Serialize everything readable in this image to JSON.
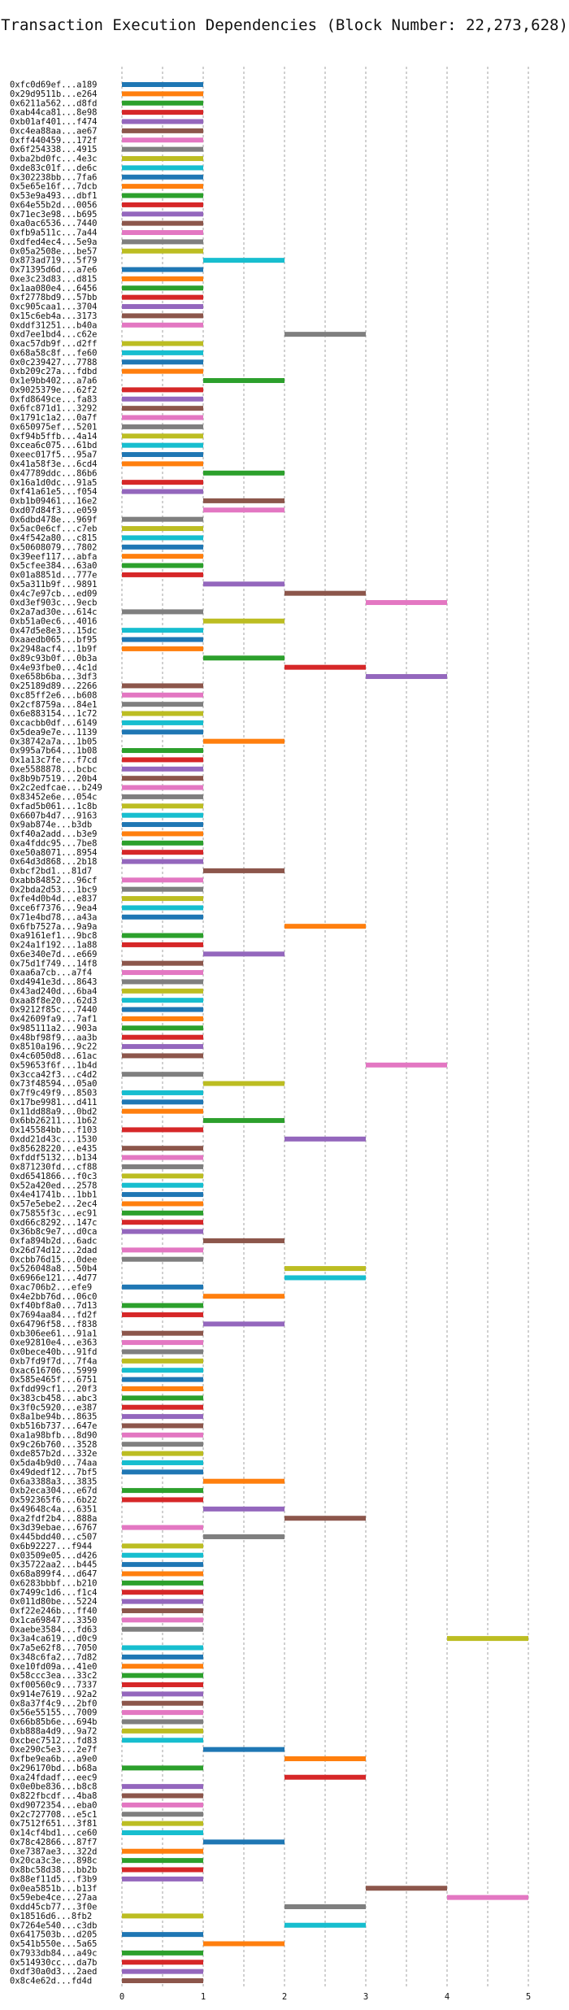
{
  "chart_data": {
    "type": "gantt-bar",
    "title": "Transaction Execution Dependencies (Block Number: 22,273,628)",
    "xlabel": "",
    "ylabel": "",
    "xlim": [
      0,
      5.3
    ],
    "xticks": [
      0,
      1,
      2,
      3,
      4,
      5
    ],
    "grid": true,
    "colors": [
      "#1f77b4",
      "#ff7f0e",
      "#2ca02c",
      "#d62728",
      "#9467bd",
      "#8c564b",
      "#e377c2",
      "#7f7f7f",
      "#bcbd22",
      "#17becf"
    ],
    "transactions": [
      {
        "label": "0xfc0d69ef...a189",
        "start": 0,
        "end": 1
      },
      {
        "label": "0x29d9511b...e264",
        "start": 0,
        "end": 1
      },
      {
        "label": "0x6211a562...d8fd",
        "start": 0,
        "end": 1
      },
      {
        "label": "0xab44ca81...8e98",
        "start": 0,
        "end": 1
      },
      {
        "label": "0xb01af401...f474",
        "start": 0,
        "end": 1
      },
      {
        "label": "0xc4ea88aa...ae67",
        "start": 0,
        "end": 1
      },
      {
        "label": "0xff440459...172f",
        "start": 0,
        "end": 1
      },
      {
        "label": "0x6f254338...4915",
        "start": 0,
        "end": 1
      },
      {
        "label": "0xba2bd0fc...4e3c",
        "start": 0,
        "end": 1
      },
      {
        "label": "0xde83c01f...de6c",
        "start": 0,
        "end": 1
      },
      {
        "label": "0x302238bb...7fa6",
        "start": 0,
        "end": 1
      },
      {
        "label": "0x5e65e16f...7dcb",
        "start": 0,
        "end": 1
      },
      {
        "label": "0x53e9a493...dbf1",
        "start": 0,
        "end": 1
      },
      {
        "label": "0x64e55b2d...0056",
        "start": 0,
        "end": 1
      },
      {
        "label": "0x71ec3e98...b695",
        "start": 0,
        "end": 1
      },
      {
        "label": "0xa0ac6536...7440",
        "start": 0,
        "end": 1
      },
      {
        "label": "0xfb9a511c...7a44",
        "start": 0,
        "end": 1
      },
      {
        "label": "0xdfed4ec4...5e9a",
        "start": 0,
        "end": 1
      },
      {
        "label": "0x05a2508e...be57",
        "start": 0,
        "end": 1
      },
      {
        "label": "0x873ad719...5f79",
        "start": 1,
        "end": 2
      },
      {
        "label": "0x71395d6d...a7e6",
        "start": 0,
        "end": 1
      },
      {
        "label": "0xe3c23d83...d815",
        "start": 0,
        "end": 1
      },
      {
        "label": "0x1aa080e4...6456",
        "start": 0,
        "end": 1
      },
      {
        "label": "0xf2778bd9...57bb",
        "start": 0,
        "end": 1
      },
      {
        "label": "0xc905caa1...3704",
        "start": 0,
        "end": 1
      },
      {
        "label": "0x15c6eb4a...3173",
        "start": 0,
        "end": 1
      },
      {
        "label": "0xddf31251...b40a",
        "start": 0,
        "end": 1
      },
      {
        "label": "0xd7ee1bd4...c62e",
        "start": 2,
        "end": 3
      },
      {
        "label": "0xac57db9f...d2ff",
        "start": 0,
        "end": 1
      },
      {
        "label": "0x68a58c8f...fe60",
        "start": 0,
        "end": 1
      },
      {
        "label": "0x0c239427...7788",
        "start": 0,
        "end": 1
      },
      {
        "label": "0xb209c27a...fdbd",
        "start": 0,
        "end": 1
      },
      {
        "label": "0x1e9bb402...a7a6",
        "start": 1,
        "end": 2
      },
      {
        "label": "0x9025379e...62f2",
        "start": 0,
        "end": 1
      },
      {
        "label": "0xfd8649ce...fa83",
        "start": 0,
        "end": 1
      },
      {
        "label": "0x6fc871d1...3292",
        "start": 0,
        "end": 1
      },
      {
        "label": "0x1791c1a2...0a7f",
        "start": 0,
        "end": 1
      },
      {
        "label": "0x650975ef...5201",
        "start": 0,
        "end": 1
      },
      {
        "label": "0xf94b5ffb...4a14",
        "start": 0,
        "end": 1
      },
      {
        "label": "0xcea6c075...61bd",
        "start": 0,
        "end": 1
      },
      {
        "label": "0xeec017f5...95a7",
        "start": 0,
        "end": 1
      },
      {
        "label": "0x41a58f3e...6cd4",
        "start": 0,
        "end": 1
      },
      {
        "label": "0x47789ddc...86b6",
        "start": 1,
        "end": 2
      },
      {
        "label": "0x16a1d0dc...91a5",
        "start": 0,
        "end": 1
      },
      {
        "label": "0xf41a61e5...f054",
        "start": 0,
        "end": 1
      },
      {
        "label": "0xb1b09461...16e2",
        "start": 1,
        "end": 2
      },
      {
        "label": "0xd07d84f3...e059",
        "start": 1,
        "end": 2
      },
      {
        "label": "0x6dbd478e...969f",
        "start": 0,
        "end": 1
      },
      {
        "label": "0x5ac0e6cf...c7eb",
        "start": 0,
        "end": 1
      },
      {
        "label": "0x4f542a80...c815",
        "start": 0,
        "end": 1
      },
      {
        "label": "0x50608079...7802",
        "start": 0,
        "end": 1
      },
      {
        "label": "0x39eef117...abfa",
        "start": 0,
        "end": 1
      },
      {
        "label": "0x5cfee384...63a0",
        "start": 0,
        "end": 1
      },
      {
        "label": "0x01a8851d...777e",
        "start": 0,
        "end": 1
      },
      {
        "label": "0x5a311b9f...9891",
        "start": 1,
        "end": 2
      },
      {
        "label": "0x4c7e97cb...ed09",
        "start": 2,
        "end": 3
      },
      {
        "label": "0xd3ef903c...9ecb",
        "start": 3,
        "end": 4
      },
      {
        "label": "0x2a7ad30e...614c",
        "start": 0,
        "end": 1
      },
      {
        "label": "0xb51a0ec6...4016",
        "start": 1,
        "end": 2
      },
      {
        "label": "0x47d5e8e3...15dc",
        "start": 0,
        "end": 1
      },
      {
        "label": "0xaaedb065...bf95",
        "start": 0,
        "end": 1
      },
      {
        "label": "0x2948acf4...1b9f",
        "start": 0,
        "end": 1
      },
      {
        "label": "0x89c93b0f...0b3a",
        "start": 1,
        "end": 2
      },
      {
        "label": "0x4e93fbe0...4c1d",
        "start": 2,
        "end": 3
      },
      {
        "label": "0xe658b6ba...3df3",
        "start": 3,
        "end": 4
      },
      {
        "label": "0x25189d89...2266",
        "start": 0,
        "end": 1
      },
      {
        "label": "0xc85ff2e6...b608",
        "start": 0,
        "end": 1
      },
      {
        "label": "0x2cf8759a...84e1",
        "start": 0,
        "end": 1
      },
      {
        "label": "0x6e883154...1c72",
        "start": 0,
        "end": 1
      },
      {
        "label": "0xcacbb0df...6149",
        "start": 0,
        "end": 1
      },
      {
        "label": "0x5dea9e7e...1139",
        "start": 0,
        "end": 1
      },
      {
        "label": "0x38742a7a...1b05",
        "start": 1,
        "end": 2
      },
      {
        "label": "0x995a7b64...1b08",
        "start": 0,
        "end": 1
      },
      {
        "label": "0x1a13c7fe...f7cd",
        "start": 0,
        "end": 1
      },
      {
        "label": "0xe5588878...bcbc",
        "start": 0,
        "end": 1
      },
      {
        "label": "0x8b9b7519...20b4",
        "start": 0,
        "end": 1
      },
      {
        "label": "0x2c2edfcae...b249",
        "start": 0,
        "end": 1
      },
      {
        "label": "0x83452e6e...054c",
        "start": 0,
        "end": 1
      },
      {
        "label": "0xfad5b061...1c8b",
        "start": 0,
        "end": 1
      },
      {
        "label": "0x6607b4d7...9163",
        "start": 0,
        "end": 1
      },
      {
        "label": "0x9ab874e...b3db",
        "start": 0,
        "end": 1
      },
      {
        "label": "0xf40a2add...b3e9",
        "start": 0,
        "end": 1
      },
      {
        "label": "0xa4fddc95...7be8",
        "start": 0,
        "end": 1
      },
      {
        "label": "0xe50a8071...8954",
        "start": 0,
        "end": 1
      },
      {
        "label": "0x64d3d868...2b18",
        "start": 0,
        "end": 1
      },
      {
        "label": "0xbcf2bd1...81d7",
        "start": 1,
        "end": 2
      },
      {
        "label": "0xabb84852...96cf",
        "start": 0,
        "end": 1
      },
      {
        "label": "0x2bda2d53...1bc9",
        "start": 0,
        "end": 1
      },
      {
        "label": "0xfe4d0b4d...e837",
        "start": 0,
        "end": 1
      },
      {
        "label": "0xce6f7376...9ea4",
        "start": 0,
        "end": 1
      },
      {
        "label": "0x71e4bd78...a43a",
        "start": 0,
        "end": 1
      },
      {
        "label": "0x6fb7527a...9a9a",
        "start": 2,
        "end": 3
      },
      {
        "label": "0xa9161ef1...9bc8",
        "start": 0,
        "end": 1
      },
      {
        "label": "0x24a1f192...1a88",
        "start": 0,
        "end": 1
      },
      {
        "label": "0x6e340e7d...e669",
        "start": 1,
        "end": 2
      },
      {
        "label": "0x75d1f749...14f8",
        "start": 0,
        "end": 1
      },
      {
        "label": "0xaa6a7cb...a7f4",
        "start": 0,
        "end": 1
      },
      {
        "label": "0xd4941e3d...8643",
        "start": 0,
        "end": 1
      },
      {
        "label": "0x43ad240d...6ba4",
        "start": 0,
        "end": 1
      },
      {
        "label": "0xaa8f8e20...62d3",
        "start": 0,
        "end": 1
      },
      {
        "label": "0x9212f85c...7440",
        "start": 0,
        "end": 1
      },
      {
        "label": "0x42609fa9...7af1",
        "start": 0,
        "end": 1
      },
      {
        "label": "0x985111a2...903a",
        "start": 0,
        "end": 1
      },
      {
        "label": "0x48bf98f9...aa3b",
        "start": 0,
        "end": 1
      },
      {
        "label": "0x8510a196...9c22",
        "start": 0,
        "end": 1
      },
      {
        "label": "0x4c6050d8...61ac",
        "start": 0,
        "end": 1
      },
      {
        "label": "0x59653f6f...1b4d",
        "start": 3,
        "end": 4
      },
      {
        "label": "0x3cca42f3...c4d2",
        "start": 0,
        "end": 1
      },
      {
        "label": "0x73f48594...05a0",
        "start": 1,
        "end": 2
      },
      {
        "label": "0x7f9c49f9...8503",
        "start": 0,
        "end": 1
      },
      {
        "label": "0x17be9981...d411",
        "start": 0,
        "end": 1
      },
      {
        "label": "0x11dd88a9...0bd2",
        "start": 0,
        "end": 1
      },
      {
        "label": "0x6bb26211...1b62",
        "start": 1,
        "end": 2
      },
      {
        "label": "0x145584bb...f103",
        "start": 0,
        "end": 1
      },
      {
        "label": "0xdd21d43c...1530",
        "start": 2,
        "end": 3
      },
      {
        "label": "0x85628220...e435",
        "start": 0,
        "end": 1
      },
      {
        "label": "0xfddf5132...b134",
        "start": 0,
        "end": 1
      },
      {
        "label": "0x871230fd...cf88",
        "start": 0,
        "end": 1
      },
      {
        "label": "0xd6541866...f0c3",
        "start": 0,
        "end": 1
      },
      {
        "label": "0x52a420ed...2578",
        "start": 0,
        "end": 1
      },
      {
        "label": "0x4e41741b...1bb1",
        "start": 0,
        "end": 1
      },
      {
        "label": "0x57e5ebe2...2ec4",
        "start": 0,
        "end": 1
      },
      {
        "label": "0x75855f3c...ec91",
        "start": 0,
        "end": 1
      },
      {
        "label": "0xd66c8292...147c",
        "start": 0,
        "end": 1
      },
      {
        "label": "0x36b8c9e7...d0ca",
        "start": 0,
        "end": 1
      },
      {
        "label": "0xfa894b2d...6adc",
        "start": 1,
        "end": 2
      },
      {
        "label": "0x26d74d12...2dad",
        "start": 0,
        "end": 1
      },
      {
        "label": "0xcbb76d15...0dee",
        "start": 0,
        "end": 1
      },
      {
        "label": "0x526048a8...50b4",
        "start": 2,
        "end": 3
      },
      {
        "label": "0x6966e121...4d77",
        "start": 2,
        "end": 3
      },
      {
        "label": "0xac706b2...efe9",
        "start": 0,
        "end": 1
      },
      {
        "label": "0x4e2bb76d...06c0",
        "start": 1,
        "end": 2
      },
      {
        "label": "0xf40bf8a0...7d13",
        "start": 0,
        "end": 1
      },
      {
        "label": "0x7694aa84...fd2f",
        "start": 0,
        "end": 1
      },
      {
        "label": "0x64796f58...f838",
        "start": 1,
        "end": 2
      },
      {
        "label": "0xb306ee61...91a1",
        "start": 0,
        "end": 1
      },
      {
        "label": "0xe92810e4...e363",
        "start": 0,
        "end": 1
      },
      {
        "label": "0x0bece40b...91fd",
        "start": 0,
        "end": 1
      },
      {
        "label": "0xb7fd9f7d...7f4a",
        "start": 0,
        "end": 1
      },
      {
        "label": "0xac616706...5999",
        "start": 0,
        "end": 1
      },
      {
        "label": "0x585e465f...6751",
        "start": 0,
        "end": 1
      },
      {
        "label": "0xfdd99cf1...20f3",
        "start": 0,
        "end": 1
      },
      {
        "label": "0x383cb458...abc3",
        "start": 0,
        "end": 1
      },
      {
        "label": "0x3f0c5920...e387",
        "start": 0,
        "end": 1
      },
      {
        "label": "0x8a1be94b...8635",
        "start": 0,
        "end": 1
      },
      {
        "label": "0xb516b737...647e",
        "start": 0,
        "end": 1
      },
      {
        "label": "0xa1a98bfb...8d90",
        "start": 0,
        "end": 1
      },
      {
        "label": "0x9c26b760...3528",
        "start": 0,
        "end": 1
      },
      {
        "label": "0xde857b2d...332e",
        "start": 0,
        "end": 1
      },
      {
        "label": "0x5da4b9d0...74aa",
        "start": 0,
        "end": 1
      },
      {
        "label": "0x49dedf12...7bf5",
        "start": 0,
        "end": 1
      },
      {
        "label": "0x6a3388a3...3835",
        "start": 1,
        "end": 2
      },
      {
        "label": "0xb2eca304...e67d",
        "start": 0,
        "end": 1
      },
      {
        "label": "0x592365f6...6b22",
        "start": 0,
        "end": 1
      },
      {
        "label": "0x49648c4a...6351",
        "start": 1,
        "end": 2
      },
      {
        "label": "0xa2fdf2b4...888a",
        "start": 2,
        "end": 3
      },
      {
        "label": "0x3d39ebae...6767",
        "start": 0,
        "end": 1
      },
      {
        "label": "0x445bdd40...c507",
        "start": 1,
        "end": 2
      },
      {
        "label": "0x6b92227...f944",
        "start": 0,
        "end": 1
      },
      {
        "label": "0x03509e05...d426",
        "start": 0,
        "end": 1
      },
      {
        "label": "0x35722aa2...b445",
        "start": 0,
        "end": 1
      },
      {
        "label": "0x68a899f4...d647",
        "start": 0,
        "end": 1
      },
      {
        "label": "0x6283bbbf...b210",
        "start": 0,
        "end": 1
      },
      {
        "label": "0x7499c1d6...f1c4",
        "start": 0,
        "end": 1
      },
      {
        "label": "0x011d80be...5224",
        "start": 0,
        "end": 1
      },
      {
        "label": "0xf22e246b...ff40",
        "start": 0,
        "end": 1
      },
      {
        "label": "0x1ca69847...3350",
        "start": 0,
        "end": 1
      },
      {
        "label": "0xaebe3584...fd63",
        "start": 0,
        "end": 1
      },
      {
        "label": "0x3a4ca619...d0c9",
        "start": 4,
        "end": 5
      },
      {
        "label": "0x7a5e62f8...7050",
        "start": 0,
        "end": 1
      },
      {
        "label": "0x348c6fa2...7d82",
        "start": 0,
        "end": 1
      },
      {
        "label": "0xe10fd09a...41e0",
        "start": 0,
        "end": 1
      },
      {
        "label": "0x58ccc3ea...33c2",
        "start": 0,
        "end": 1
      },
      {
        "label": "0xf00560c9...7337",
        "start": 0,
        "end": 1
      },
      {
        "label": "0x914e7619...92a2",
        "start": 0,
        "end": 1
      },
      {
        "label": "0x8a37f4c9...2bf0",
        "start": 0,
        "end": 1
      },
      {
        "label": "0x56e55155...7009",
        "start": 0,
        "end": 1
      },
      {
        "label": "0x66b85b6e...694b",
        "start": 0,
        "end": 1
      },
      {
        "label": "0xb888a4d9...9a72",
        "start": 0,
        "end": 1
      },
      {
        "label": "0xcbec7512...fd83",
        "start": 0,
        "end": 1
      },
      {
        "label": "0xe290c5e3...2e7f",
        "start": 1,
        "end": 2
      },
      {
        "label": "0xfbe9ea6b...a9e0",
        "start": 2,
        "end": 3
      },
      {
        "label": "0x296170bd...b68a",
        "start": 0,
        "end": 1
      },
      {
        "label": "0xa24fdadf...eec9",
        "start": 2,
        "end": 3
      },
      {
        "label": "0x0e0be836...b8c8",
        "start": 0,
        "end": 1
      },
      {
        "label": "0x822fbcdf...4ba8",
        "start": 0,
        "end": 1
      },
      {
        "label": "0xd9072354...eba0",
        "start": 0,
        "end": 1
      },
      {
        "label": "0x2c727708...e5c1",
        "start": 0,
        "end": 1
      },
      {
        "label": "0x7512f651...3f81",
        "start": 0,
        "end": 1
      },
      {
        "label": "0x14cf4bd1...ce60",
        "start": 0,
        "end": 1
      },
      {
        "label": "0x78c42866...87f7",
        "start": 1,
        "end": 2
      },
      {
        "label": "0xe7387ae3...322d",
        "start": 0,
        "end": 1
      },
      {
        "label": "0x20ca3c3e...898c",
        "start": 0,
        "end": 1
      },
      {
        "label": "0x8bc58d38...bb2b",
        "start": 0,
        "end": 1
      },
      {
        "label": "0x88ef11d5...f3b9",
        "start": 0,
        "end": 1
      },
      {
        "label": "0x0ea5851b...b13f",
        "start": 3,
        "end": 4
      },
      {
        "label": "0x59ebe4ce...27aa",
        "start": 4,
        "end": 5
      },
      {
        "label": "0xdd45cb77...3f0e",
        "start": 2,
        "end": 3
      },
      {
        "label": "0x18516d6...8fb2",
        "start": 0,
        "end": 1
      },
      {
        "label": "0x7264e540...c3db",
        "start": 2,
        "end": 3
      },
      {
        "label": "0x6417503b...d205",
        "start": 0,
        "end": 1
      },
      {
        "label": "0x541b550e...5a65",
        "start": 1,
        "end": 2
      },
      {
        "label": "0x7933db84...a49c",
        "start": 0,
        "end": 1
      },
      {
        "label": "0x514930cc...da7b",
        "start": 0,
        "end": 1
      },
      {
        "label": "0xdf30a0d3...2aed",
        "start": 0,
        "end": 1
      },
      {
        "label": "0x8c4e62d...fd4d",
        "start": 0,
        "end": 1
      }
    ]
  }
}
